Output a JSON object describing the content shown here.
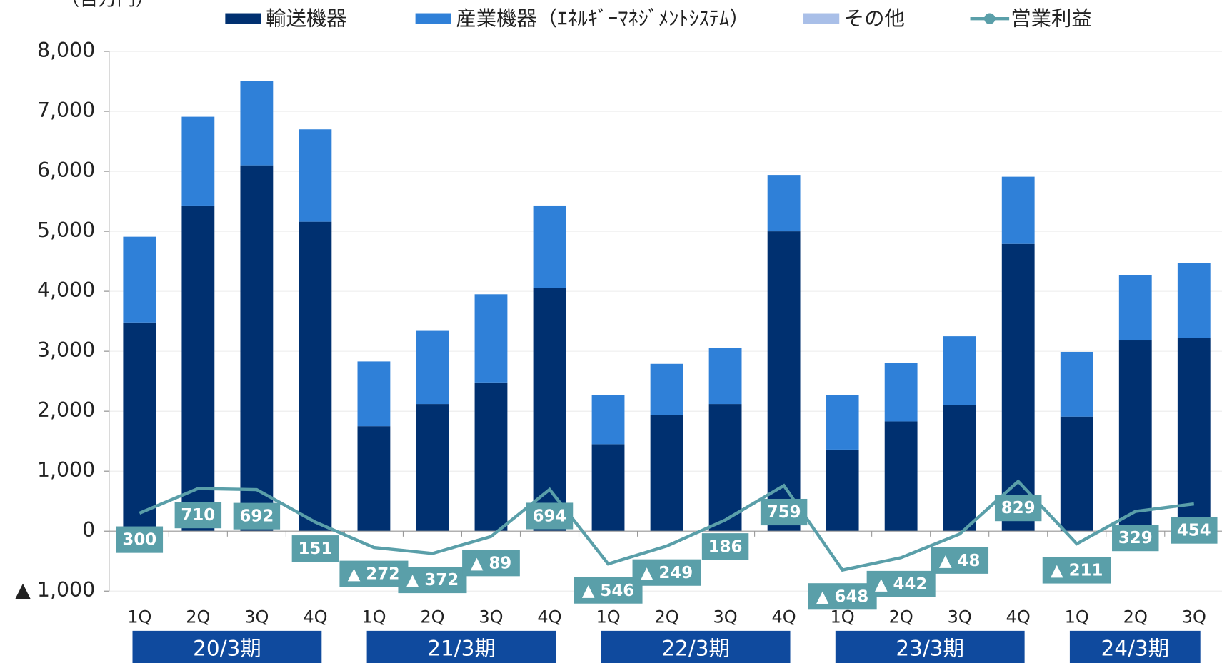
{
  "chart_data": {
    "type": "bar",
    "y_label": "（百万円）",
    "categories": [
      "1Q",
      "2Q",
      "3Q",
      "4Q",
      "1Q",
      "2Q",
      "3Q",
      "4Q",
      "1Q",
      "2Q",
      "3Q",
      "4Q",
      "1Q",
      "2Q",
      "3Q",
      "4Q",
      "1Q",
      "2Q",
      "3Q"
    ],
    "groups": [
      "20/3期",
      "21/3期",
      "22/3期",
      "23/3期",
      "24/3期"
    ],
    "series": [
      {
        "name": "輸送機器",
        "color": "#003070",
        "values": [
          3480,
          5430,
          6100,
          5160,
          1750,
          2120,
          2480,
          4050,
          1450,
          1940,
          2120,
          5000,
          1360,
          1830,
          2100,
          4790,
          1910,
          3180,
          3220
        ]
      },
      {
        "name": "産業機器（ｴﾈﾙｷﾞｰﾏﾈｼﾞﾒﾝﾄｼｽﾃﾑ）",
        "color": "#2f80d8",
        "values": [
          1430,
          1480,
          1410,
          1540,
          1080,
          1220,
          1470,
          1380,
          820,
          850,
          930,
          940,
          910,
          980,
          1150,
          1120,
          1080,
          1090,
          1250
        ]
      },
      {
        "name": "その他",
        "color": "#a9bfe8",
        "values": [
          0,
          0,
          0,
          0,
          0,
          0,
          0,
          0,
          0,
          0,
          0,
          0,
          0,
          0,
          0,
          0,
          0,
          0,
          0
        ]
      },
      {
        "name": "営業利益",
        "type": "line",
        "color": "#5a9fa9",
        "values": [
          300,
          710,
          692,
          151,
          -272,
          -372,
          -89,
          694,
          -546,
          -249,
          186,
          759,
          -648,
          -442,
          -48,
          829,
          -211,
          329,
          454
        ],
        "value_labels": [
          "300",
          "710",
          "692",
          "151",
          "▲ 272",
          "▲ 372",
          "▲ 89",
          "694",
          "▲ 546",
          "▲ 249",
          "186",
          "759",
          "▲ 648",
          "▲ 442",
          "▲ 48",
          "829",
          "▲ 211",
          "329",
          "454"
        ]
      }
    ],
    "ylim": [
      -1000,
      8000
    ],
    "yticks": [
      {
        "value": 8000,
        "label": "8,000"
      },
      {
        "value": 7000,
        "label": "7,000"
      },
      {
        "value": 6000,
        "label": "6,000"
      },
      {
        "value": 5000,
        "label": "5,000"
      },
      {
        "value": 4000,
        "label": "4,000"
      },
      {
        "value": 3000,
        "label": "3,000"
      },
      {
        "value": 2000,
        "label": "2,000"
      },
      {
        "value": 1000,
        "label": "1,000"
      },
      0,
      {
        "value": -1000,
        "label": "▲ 1,000"
      }
    ],
    "grid": true
  }
}
